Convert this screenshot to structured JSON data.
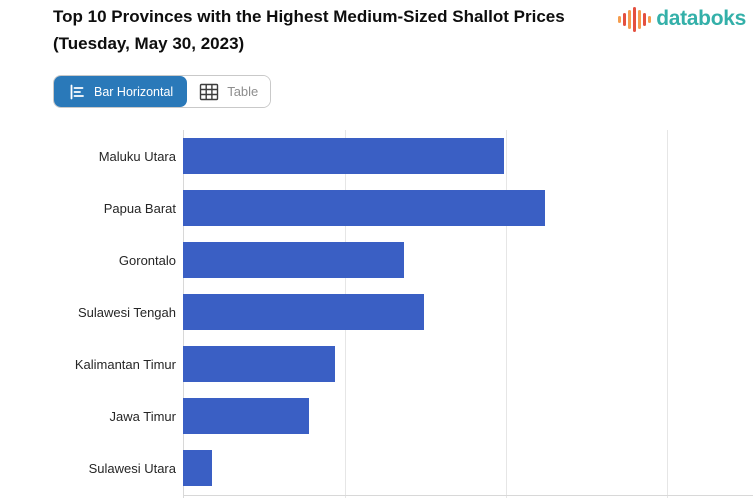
{
  "header": {
    "title": "Top 10 Provinces with the Highest Medium-Sized Shallot Prices (Tuesday, May 30, 2023)",
    "brand": {
      "name": "databoks",
      "text_color": "#34b0a9",
      "icon_colors": [
        "#f59d4e",
        "#e4503f"
      ]
    }
  },
  "toolbar": {
    "tabs": [
      {
        "label": "Bar Horizontal",
        "active": true
      },
      {
        "label": "Table",
        "active": false
      }
    ],
    "active_bg": "#2a79b9"
  },
  "chart_data": {
    "type": "bar",
    "orientation": "horizontal",
    "title": "Top 10 Provinces with the Highest Medium-Sized Shallot Prices (Tuesday, May 30, 2023)",
    "categories": [
      "Maluku Utara",
      "Papua Barat",
      "Gorontalo",
      "Sulawesi Tengah",
      "Kalimantan Timur",
      "Jawa Timur",
      "Sulawesi Utara"
    ],
    "values": [
      1.99,
      2.24,
      1.37,
      1.49,
      0.94,
      0.78,
      0.18
    ],
    "value_units": "x-axis gridline units; numeric tick labels are cropped out of the visible screenshot",
    "xlim": [
      0,
      3.53
    ],
    "gridline_interval": 1,
    "grid": true,
    "legend": false,
    "bar_color": "#3a5fc4",
    "gridline_color": "#e6e6e6",
    "axis_color": "#d8d8d8",
    "visible_rows": 7,
    "note": "Chart lists Top 10 provinces but only 7 rows are visible; bottom/right of plot is cropped"
  }
}
